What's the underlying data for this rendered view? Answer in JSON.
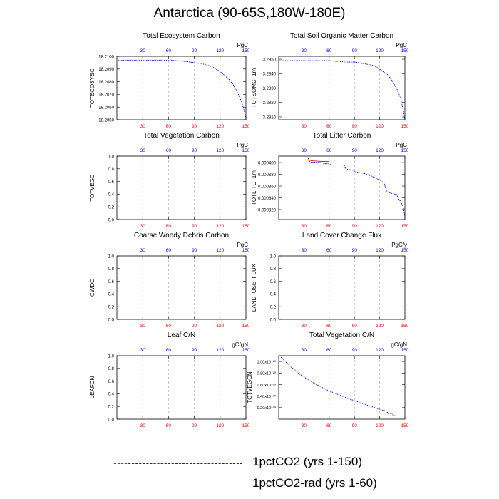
{
  "title": "Antarctica (90-65S,180W-180E)",
  "colors": {
    "series1": "#0000ff",
    "series2": "#ff0000",
    "top_ticks": "#0000ff",
    "bottom_ticks": "#ff0000",
    "grid": "#a0a0a0"
  },
  "legend": [
    {
      "label": "1pctCO2 (yrs 1-150)",
      "style": "dashed-red-blue"
    },
    {
      "label": "1pctCO2-rad (yrs 1-60)",
      "style": "solid-red"
    }
  ],
  "chart_data": [
    {
      "type": "line",
      "title": "Total Ecosystem Carbon",
      "ylabel": "TOTECOSYSC",
      "unit": "PgC",
      "xlim": [
        0,
        150
      ],
      "xticks": [
        30,
        60,
        90,
        120,
        150
      ],
      "ylim": [
        18.205,
        18.21
      ],
      "yticks": [
        "18.2050",
        "18.2060",
        "18.2070",
        "18.2080",
        "18.2090",
        "18.2100"
      ],
      "series": [
        {
          "x": [
            1,
            20,
            40,
            60,
            80,
            90,
            100,
            110,
            115,
            120,
            125,
            130,
            135,
            140,
            145,
            148,
            150
          ],
          "y": [
            18.2097,
            18.2097,
            18.2097,
            18.2097,
            18.2096,
            18.2095,
            18.2094,
            18.2092,
            18.209,
            18.2088,
            18.2085,
            18.2082,
            18.2078,
            18.2072,
            18.2064,
            18.2057,
            18.2051
          ]
        }
      ]
    },
    {
      "type": "line",
      "title": "Total Soil Organic Matter Carbon",
      "ylabel": "TOTSOMC_1m",
      "unit": "PgC",
      "xlim": [
        0,
        150
      ],
      "xticks": [
        30,
        60,
        90,
        120,
        150
      ],
      "ylim": [
        3.2808,
        3.2852
      ],
      "yticks": [
        "3.2810",
        "3.2820",
        "3.2830",
        "3.2840",
        "3.2850"
      ],
      "series": [
        {
          "x": [
            1,
            20,
            40,
            60,
            80,
            90,
            100,
            110,
            115,
            120,
            125,
            130,
            135,
            140,
            145,
            148,
            150
          ],
          "y": [
            3.2849,
            3.2849,
            3.2849,
            3.2849,
            3.2848,
            3.2848,
            3.2847,
            3.2846,
            3.2845,
            3.2843,
            3.2841,
            3.2839,
            3.2835,
            3.283,
            3.2823,
            3.2815,
            3.2808
          ]
        }
      ]
    },
    {
      "type": "line",
      "title": "Total Vegetation Carbon",
      "ylabel": "TOTVEGC",
      "unit": "PgC",
      "xlim": [
        0,
        150
      ],
      "xticks": [
        30,
        60,
        90,
        120,
        150
      ],
      "ylim": [
        0,
        1
      ],
      "yticks": [
        "0.0",
        "0.2",
        "0.4",
        "0.6",
        "0.8",
        "1.0"
      ],
      "series": []
    },
    {
      "type": "line",
      "title": "Total Litter Carbon",
      "ylabel": "TOTLITC_1m",
      "unit": "PgC",
      "xlim": [
        0,
        150
      ],
      "xticks": [
        30,
        60,
        90,
        120,
        150
      ],
      "ylim": [
        0.000303,
        0.000411
      ],
      "yticks": [
        "0.000320",
        "0.000340",
        "0.000360",
        "0.000380",
        "0.000400"
      ],
      "series": [
        {
          "name": "1pctCO2",
          "x": [
            1,
            30,
            35,
            36,
            38,
            50,
            55,
            60,
            62,
            70,
            75,
            78,
            80,
            85,
            88,
            90,
            95,
            100,
            105,
            110,
            115,
            120,
            122,
            125,
            127,
            128,
            130,
            135,
            140,
            143,
            145,
            148,
            150
          ],
          "y": [
            0.000408,
            0.000408,
            0.000408,
            0.000402,
            0.000401,
            0.0004,
            0.000398,
            0.000398,
            0.000396,
            0.000396,
            0.000396,
            0.000395,
            0.000389,
            0.000388,
            0.000387,
            0.000385,
            0.000383,
            0.000382,
            0.00038,
            0.000377,
            0.000374,
            0.00037,
            0.000368,
            0.000366,
            0.000357,
            0.000352,
            0.00035,
            0.000347,
            0.000346,
            0.000337,
            0.000334,
            0.000325,
            0.000308
          ]
        },
        {
          "name": "1pctCO2-rad",
          "x": [
            1,
            30,
            35,
            36,
            40,
            50,
            60
          ],
          "y": [
            0.000408,
            0.000408,
            0.000408,
            0.000404,
            0.000403,
            0.000402,
            0.000402
          ]
        }
      ]
    },
    {
      "type": "line",
      "title": "Coarse Woody Debris Carbon",
      "ylabel": "CWDC",
      "unit": "PgC",
      "xlim": [
        0,
        150
      ],
      "xticks": [
        30,
        60,
        90,
        120,
        150
      ],
      "ylim": [
        0,
        1
      ],
      "yticks": [
        "0.0",
        "0.2",
        "0.4",
        "0.6",
        "0.8",
        "1.0"
      ],
      "series": []
    },
    {
      "type": "line",
      "title": "Land Cover Change Flux",
      "ylabel": "LAND_USE_FLUX",
      "unit": "PgC/y",
      "xlim": [
        0,
        150
      ],
      "xticks": [
        30,
        60,
        90,
        120,
        150
      ],
      "ylim": [
        0,
        1
      ],
      "yticks": [
        "0.0",
        "0.2",
        "0.4",
        "0.6",
        "0.8",
        "1.0"
      ],
      "series": []
    },
    {
      "type": "line",
      "title": "Leaf C/N",
      "ylabel": "LEAFCN",
      "unit": "gC/gN",
      "xlim": [
        0,
        150
      ],
      "xticks": [
        30,
        60,
        90,
        120,
        150
      ],
      "ylim": [
        0,
        1
      ],
      "yticks": [
        "0.0",
        "0.2",
        "0.4",
        "0.6",
        "0.8",
        "1.0"
      ],
      "series": []
    },
    {
      "type": "line",
      "title": "Total Vegetation C/N",
      "ylabel": "TOTVEGCN",
      "unit": "gC/gN",
      "xlim": [
        0,
        150
      ],
      "xticks": [
        30,
        60,
        90,
        120,
        150
      ],
      "ylim": [
        0,
        1.1e-20
      ],
      "yticks": [
        "0.20x10⁻²⁰",
        "0.40x10⁻²⁰",
        "0.60x10⁻²⁰",
        "0.80x10⁻²⁰",
        "1.00x10⁻²⁰"
      ],
      "ytick_values": [
        2e-21,
        4e-21,
        6e-21,
        8e-21,
        1e-20
      ],
      "series": [
        {
          "x": [
            1,
            5,
            10,
            15,
            20,
            25,
            30,
            40,
            50,
            60,
            70,
            80,
            90,
            100,
            110,
            120,
            128,
            130,
            135,
            136,
            140
          ],
          "y": [
            1.1e-20,
            1.04e-20,
            9.7e-21,
            9e-21,
            8.4e-21,
            7.8e-21,
            7.3e-21,
            6.4e-21,
            5.6e-21,
            4.9e-21,
            4.3e-21,
            3.7e-21,
            3.2e-21,
            2.7e-21,
            2.2e-21,
            1.7e-21,
            1.4e-21,
            1e-21,
            1e-21,
            6e-22,
            6e-22
          ]
        }
      ]
    }
  ]
}
